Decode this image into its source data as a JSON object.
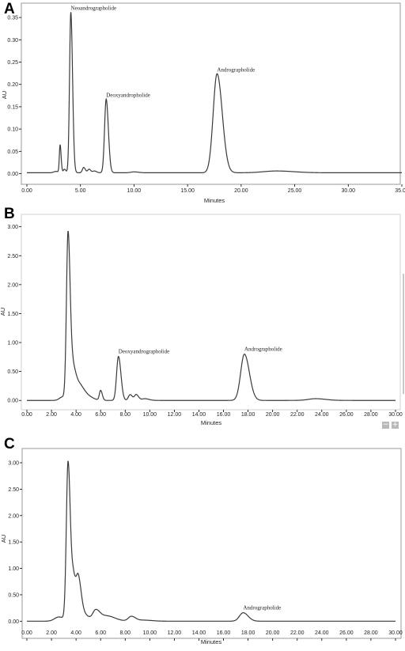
{
  "chart_data": [
    {
      "panel": "A",
      "type": "line",
      "ylabel": "AU",
      "xlabel": "Minutes",
      "xlim": [
        0,
        35
      ],
      "ylim": [
        -0.015,
        0.375
      ],
      "x_ticks": [
        0,
        5,
        10,
        15,
        20,
        25,
        30,
        35
      ],
      "x_tick_labels": [
        "0.00",
        "5.00",
        "10.00",
        "15.00",
        "20.00",
        "25.00",
        "30.00",
        "35.00"
      ],
      "y_ticks": [
        0,
        0.05,
        0.1,
        0.15,
        0.2,
        0.25,
        0.3,
        0.35
      ],
      "y_tick_labels": [
        "0.00",
        "0.05",
        "0.10",
        "0.15",
        "0.20",
        "0.25",
        "0.30",
        "0.35"
      ],
      "baseline": 0.002,
      "series": [
        {
          "peaks": [
            {
              "x": 2.7,
              "h": 0.003,
              "w": 0.2
            },
            {
              "x": 3.1,
              "h": 0.062,
              "w": 0.07
            },
            {
              "x": 3.5,
              "h": 0.008,
              "w": 0.1
            },
            {
              "x": 4.1,
              "h": 0.36,
              "w": 0.12
            },
            {
              "x": 5.3,
              "h": 0.012,
              "w": 0.12
            },
            {
              "x": 5.8,
              "h": 0.008,
              "w": 0.12
            },
            {
              "x": 6.3,
              "h": 0.004,
              "w": 0.15
            },
            {
              "x": 7.4,
              "h": 0.165,
              "w": 0.15
            },
            {
              "x": 10.0,
              "h": 0.002,
              "w": 0.3
            },
            {
              "x": 17.75,
              "h": 0.222,
              "w": 0.36
            },
            {
              "x": 23.3,
              "h": 0.004,
              "w": 1.2
            }
          ]
        }
      ],
      "annotations": [
        {
          "text": "Neoandrographolide",
          "x": 4.1,
          "y": 0.36
        },
        {
          "text": "Deoxyandropholide",
          "x": 7.4,
          "y": 0.165
        },
        {
          "text": "Andrographolide",
          "x": 17.75,
          "y": 0.222
        }
      ]
    },
    {
      "panel": "B",
      "type": "line",
      "ylabel": "AU",
      "xlabel": "Minutes",
      "xlim": [
        0,
        30
      ],
      "ylim": [
        -0.12,
        3.05
      ],
      "x_ticks": [
        0,
        2,
        4,
        6,
        8,
        10,
        12,
        14,
        16,
        18,
        20,
        22,
        24,
        26,
        28,
        30
      ],
      "x_tick_labels": [
        "0.00",
        "2.00",
        "4.00",
        "6.00",
        "8.00",
        "10.00",
        "12.00",
        "14.00",
        "16.00",
        "18.00",
        "20.00",
        "22.00",
        "24.00",
        "26.00",
        "28.00",
        "30.00"
      ],
      "y_ticks": [
        0,
        0.5,
        1.0,
        1.5,
        2.0,
        2.5,
        3.0
      ],
      "y_tick_labels": [
        "0.00",
        "0.50",
        "1.00",
        "1.50",
        "2.00",
        "2.50",
        "3.00"
      ],
      "baseline": 0.0,
      "series": [
        {
          "peaks": [
            {
              "x": 2.9,
              "h": 0.06,
              "w": 0.25
            },
            {
              "x": 3.35,
              "h": 2.88,
              "w": 0.13
            },
            {
              "x": 3.75,
              "h": 0.42,
              "w": 0.15
            },
            {
              "x": 4.15,
              "h": 0.3,
              "w": 0.3
            },
            {
              "x": 4.9,
              "h": 0.07,
              "w": 0.35
            },
            {
              "x": 6.0,
              "h": 0.17,
              "w": 0.1
            },
            {
              "x": 7.45,
              "h": 0.76,
              "w": 0.15
            },
            {
              "x": 8.4,
              "h": 0.1,
              "w": 0.14
            },
            {
              "x": 8.9,
              "h": 0.1,
              "w": 0.14
            },
            {
              "x": 9.6,
              "h": 0.03,
              "w": 0.25
            },
            {
              "x": 17.7,
              "h": 0.8,
              "w": 0.3
            },
            {
              "x": 23.5,
              "h": 0.03,
              "w": 0.6
            }
          ]
        }
      ],
      "annotations": [
        {
          "text": "Deoxyandrographolide",
          "x": 7.45,
          "y": 0.76
        },
        {
          "text": "Andrographolide",
          "x": 17.7,
          "y": 0.8
        }
      ]
    },
    {
      "panel": "C",
      "type": "line",
      "ylabel": "AU",
      "xlabel": "Minutes",
      "xlim": [
        0,
        30
      ],
      "ylim": [
        -0.1,
        3.15
      ],
      "x_ticks": [
        0,
        2,
        4,
        6,
        8,
        10,
        12,
        14,
        16,
        18,
        20,
        22,
        24,
        26,
        28,
        30
      ],
      "x_tick_labels": [
        "0.00",
        "2.00",
        "4.00",
        "6.00",
        "8.00",
        "10.00",
        "12.00",
        "14.00",
        "16.00",
        "18.00",
        "20.00",
        "22.00",
        "24.00",
        "26.00",
        "28.00",
        "30.00"
      ],
      "y_ticks": [
        0,
        0.5,
        1.0,
        1.5,
        2.0,
        2.5,
        3.0
      ],
      "y_tick_labels": [
        "0.00",
        "0.50",
        "1.00",
        "1.50",
        "2.00",
        "2.50",
        "3.00"
      ],
      "baseline": 0.0,
      "series": [
        {
          "peaks": [
            {
              "x": 2.6,
              "h": 0.08,
              "w": 0.35
            },
            {
              "x": 3.35,
              "h": 3.0,
              "w": 0.14
            },
            {
              "x": 3.8,
              "h": 0.75,
              "w": 0.15
            },
            {
              "x": 4.2,
              "h": 0.76,
              "w": 0.17
            },
            {
              "x": 4.7,
              "h": 0.12,
              "w": 0.25
            },
            {
              "x": 5.6,
              "h": 0.2,
              "w": 0.25
            },
            {
              "x": 6.5,
              "h": 0.1,
              "w": 0.5
            },
            {
              "x": 8.5,
              "h": 0.09,
              "w": 0.25
            },
            {
              "x": 9.5,
              "h": 0.02,
              "w": 0.5
            },
            {
              "x": 17.6,
              "h": 0.16,
              "w": 0.3
            }
          ]
        }
      ],
      "annotations": [
        {
          "text": "Andrographolide",
          "x": 17.6,
          "y": 0.16
        }
      ]
    }
  ],
  "panels": [
    {
      "letter": "A",
      "ylabel": "AU",
      "xlabel": "Minutes"
    },
    {
      "letter": "B",
      "ylabel": "AU",
      "xlabel": "Minutes"
    },
    {
      "letter": "C",
      "ylabel": "AU",
      "xlabel": "Minutes"
    }
  ],
  "controls": {
    "zoom_out": "−",
    "zoom_in": "+"
  },
  "colors": {
    "trace": "#3a3a3a",
    "axis": "#000000",
    "frame": "#9a9a9a",
    "text": "#222222",
    "zoom_button": "#b9b9b9"
  }
}
